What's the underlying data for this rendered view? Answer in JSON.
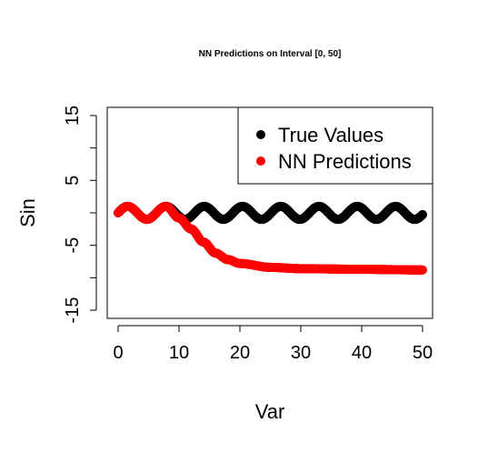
{
  "chart_data": {
    "type": "scatter",
    "title": "NN Predictions on Interval [0, 50]",
    "xlabel": "Var",
    "ylabel": "Sin",
    "xlim": [
      0,
      50
    ],
    "ylim": [
      -15,
      15
    ],
    "xticks": [
      0,
      10,
      20,
      30,
      40,
      50
    ],
    "yticks": [
      -15,
      -10,
      -5,
      0,
      5,
      10,
      15
    ],
    "ytick_labels": [
      "-15",
      "",
      "-5",
      "",
      "5",
      "",
      "15"
    ],
    "legend_position": "top-right",
    "series": [
      {
        "name": "True Values",
        "color": "#000000",
        "function": "sin(x)",
        "x_range": [
          0,
          50
        ]
      },
      {
        "name": "NN Predictions",
        "color": "#ff0000",
        "x_range": [
          0,
          50
        ],
        "description_points": [
          {
            "x": 0,
            "y": 0
          },
          {
            "x": 1.6,
            "y": 1
          },
          {
            "x": 4.7,
            "y": -1
          },
          {
            "x": 7.9,
            "y": 1
          },
          {
            "x": 10,
            "y": -0.8
          },
          {
            "x": 12,
            "y": -2.5
          },
          {
            "x": 14,
            "y": -4.5
          },
          {
            "x": 16,
            "y": -6.2
          },
          {
            "x": 18,
            "y": -7.2
          },
          {
            "x": 20,
            "y": -7.8
          },
          {
            "x": 25,
            "y": -8.4
          },
          {
            "x": 30,
            "y": -8.6
          },
          {
            "x": 40,
            "y": -8.7
          },
          {
            "x": 50,
            "y": -8.8
          }
        ]
      }
    ]
  }
}
